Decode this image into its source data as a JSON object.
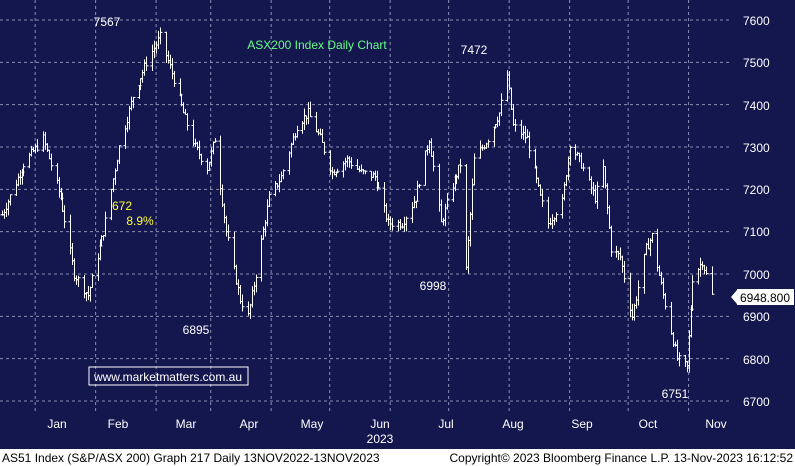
{
  "chart_data": {
    "type": "ohlc",
    "title": "ASX200 Index Daily Chart",
    "year_label": "2023",
    "x_ticks": [
      "Jan",
      "Feb",
      "Mar",
      "Apr",
      "May",
      "Jun",
      "Jul",
      "Aug",
      "Sep",
      "Oct",
      "Nov"
    ],
    "y_ticks": [
      6700,
      6800,
      6900,
      7000,
      7100,
      7200,
      7300,
      7400,
      7500,
      7600
    ],
    "ylim": [
      6650,
      7650
    ],
    "last_value_label": "6948.800",
    "annotations": {
      "high_feb": "7567",
      "low_mar": "6895",
      "low_jul": "6998",
      "high_jul": "7472",
      "low_oct": "6751",
      "drop_points": "672",
      "drop_pct": "8.9%"
    },
    "watermark": "www.marketmatters.com.au",
    "price_path": [
      [
        "2022-11-14",
        7140
      ],
      [
        "2022-11-25",
        7260
      ],
      [
        "2022-12-05",
        7320
      ],
      [
        "2022-12-14",
        7180
      ],
      [
        "2022-12-21",
        7000
      ],
      [
        "2022-12-28",
        6950
      ],
      [
        "2023-01-05",
        7100
      ],
      [
        "2023-01-13",
        7300
      ],
      [
        "2023-01-20",
        7420
      ],
      [
        "2023-01-27",
        7500
      ],
      [
        "2023-02-03",
        7560
      ],
      [
        "2023-02-10",
        7460
      ],
      [
        "2023-02-15",
        7380
      ],
      [
        "2023-02-21",
        7300
      ],
      [
        "2023-02-27",
        7250
      ],
      [
        "2023-03-03",
        7320
      ],
      [
        "2023-03-09",
        7100
      ],
      [
        "2023-03-16",
        6940
      ],
      [
        "2023-03-20",
        6900
      ],
      [
        "2023-03-24",
        7000
      ],
      [
        "2023-03-31",
        7180
      ],
      [
        "2023-04-06",
        7230
      ],
      [
        "2023-04-14",
        7350
      ],
      [
        "2023-04-20",
        7380
      ],
      [
        "2023-04-26",
        7320
      ],
      [
        "2023-05-02",
        7240
      ],
      [
        "2023-05-10",
        7270
      ],
      [
        "2023-05-17",
        7240
      ],
      [
        "2023-05-24",
        7230
      ],
      [
        "2023-05-31",
        7120
      ],
      [
        "2023-06-07",
        7120
      ],
      [
        "2023-06-14",
        7180
      ],
      [
        "2023-06-21",
        7320
      ],
      [
        "2023-06-27",
        7120
      ],
      [
        "2023-07-03",
        7210
      ],
      [
        "2023-07-07",
        7260
      ],
      [
        "2023-07-10",
        7010
      ],
      [
        "2023-07-14",
        7270
      ],
      [
        "2023-07-21",
        7320
      ],
      [
        "2023-07-27",
        7380
      ],
      [
        "2023-07-31",
        7470
      ],
      [
        "2023-08-03",
        7350
      ],
      [
        "2023-08-10",
        7320
      ],
      [
        "2023-08-17",
        7180
      ],
      [
        "2023-08-21",
        7120
      ],
      [
        "2023-08-28",
        7170
      ],
      [
        "2023-09-01",
        7310
      ],
      [
        "2023-09-07",
        7260
      ],
      [
        "2023-09-14",
        7180
      ],
      [
        "2023-09-18",
        7250
      ],
      [
        "2023-09-22",
        7060
      ],
      [
        "2023-09-27",
        7040
      ],
      [
        "2023-10-03",
        6900
      ],
      [
        "2023-10-10",
        7060
      ],
      [
        "2023-10-13",
        7090
      ],
      [
        "2023-10-19",
        6950
      ],
      [
        "2023-10-26",
        6800
      ],
      [
        "2023-10-31",
        6780
      ],
      [
        "2023-11-03",
        6990
      ],
      [
        "2023-11-08",
        7030
      ],
      [
        "2023-11-13",
        6949
      ]
    ]
  },
  "footer": {
    "left": "AS51 Index (S&P/ASX 200) Graph 217  Daily 13NOV2022-13NOV2023",
    "right": "Copyright© 2023 Bloomberg Finance L.P. 13-Nov-2023 16:12:52"
  },
  "colors": {
    "plot_background": "#14164e",
    "price_bars": "#ffffff",
    "grid": "#8a8fb3",
    "title_text": "#66ff88",
    "highlight_text": "#ffff33",
    "footer_background": "#ffffff"
  }
}
